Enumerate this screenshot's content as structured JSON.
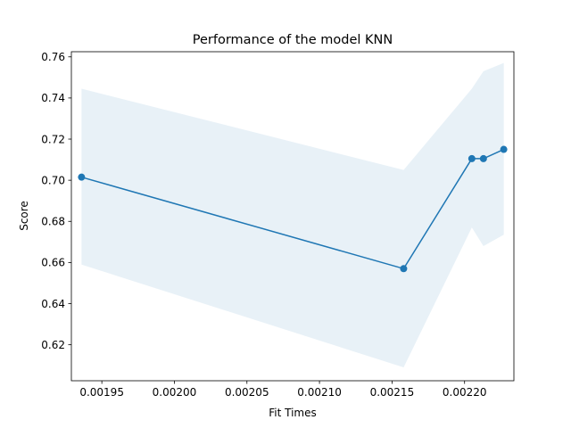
{
  "chart_data": {
    "type": "line",
    "title": "Performance of the model KNN",
    "xlabel": "Fit Times",
    "ylabel": "Score",
    "xlim": [
      0.001929,
      0.002234
    ],
    "ylim": [
      0.6025,
      0.7625
    ],
    "x_ticks": [
      0.00195,
      0.002,
      0.00205,
      0.0021,
      0.00215,
      0.0022
    ],
    "x_tick_labels": [
      "0.00195",
      "0.00200",
      "0.00205",
      "0.00210",
      "0.00215",
      "0.00220"
    ],
    "y_ticks": [
      0.62,
      0.64,
      0.66,
      0.68,
      0.7,
      0.72,
      0.74,
      0.76
    ],
    "y_tick_labels": [
      "0.62",
      "0.64",
      "0.66",
      "0.68",
      "0.70",
      "0.72",
      "0.74",
      "0.76"
    ],
    "grid": false,
    "colors": {
      "line": "#1f77b4",
      "band": "#1f77b4",
      "axes": "#000000"
    },
    "series": [
      {
        "x": [
          0.001936,
          0.002158,
          0.002205,
          0.002213,
          0.002227
        ],
        "y": [
          0.7015,
          0.657,
          0.7105,
          0.7105,
          0.715
        ],
        "band_lower": [
          0.659,
          0.609,
          0.677,
          0.668,
          0.6735
        ],
        "band_upper": [
          0.7445,
          0.705,
          0.7445,
          0.753,
          0.757
        ]
      }
    ]
  }
}
